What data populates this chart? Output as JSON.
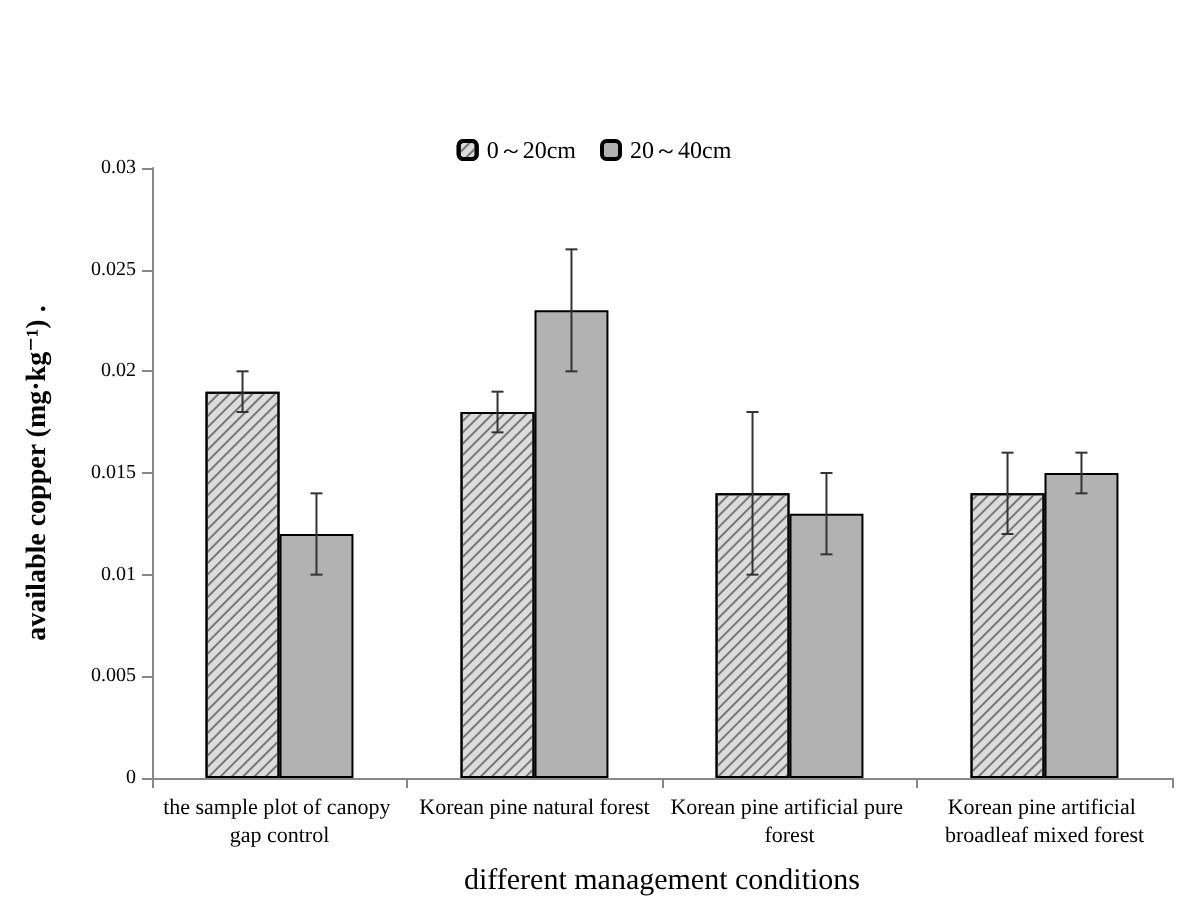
{
  "chart_data": {
    "type": "bar",
    "categories": [
      "the sample plot of canopy gap control",
      "Korean pine natural forest",
      "Korean pine artificial pure forest",
      "Korean pine artificial broadleaf mixed forest"
    ],
    "series": [
      {
        "name": "0～20cm",
        "color": "#dcdcdc",
        "values": [
          0.019,
          0.018,
          0.014,
          0.014
        ],
        "errors": [
          0.001,
          0.001,
          0.004,
          0.002
        ]
      },
      {
        "name": "20～40cm",
        "color": "#b2b2b2",
        "values": [
          0.012,
          0.023,
          0.013,
          0.015
        ],
        "errors": [
          0.002,
          0.003,
          0.002,
          0.001
        ]
      }
    ],
    "xlabel": "different management conditions",
    "ylabel": "available copper (mg·kg⁻¹) .",
    "ylim": [
      0,
      0.03
    ],
    "yticks": [
      0,
      0.005,
      0.01,
      0.015,
      0.02,
      0.025,
      0.03
    ],
    "grid": false,
    "legend": "top"
  }
}
